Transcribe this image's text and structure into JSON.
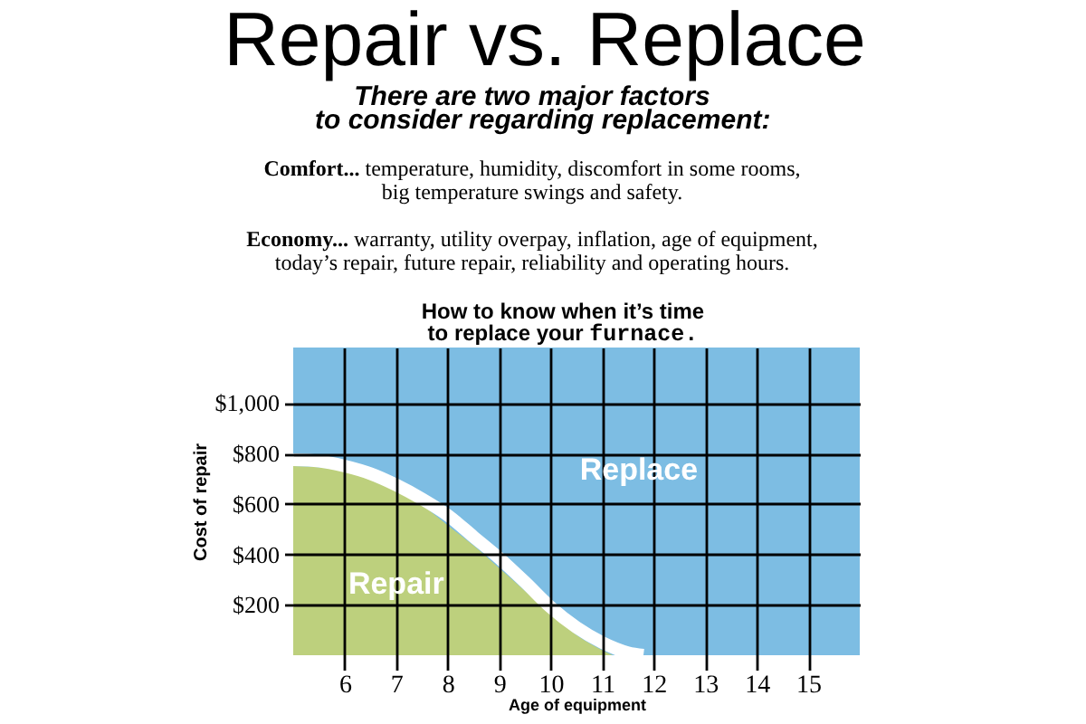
{
  "chart_data": {
    "type": "area",
    "title": "Repair vs. Replace",
    "subtitle": "There are two major factors to consider regarding replacement:",
    "annotations": [
      "Comfort... temperature, humidity, discomfort in some rooms, big temperature swings and safety.",
      "Economy... warranty, utility overpay, inflation, age of equipment, today’s repair, future repair, reliability and operating hours.",
      "How to know when it’s time to replace your furnace."
    ],
    "xlabel": "Age of equipment",
    "ylabel": "Cost of repair",
    "xlim": [
      5,
      16
    ],
    "ylim": [
      0,
      1220
    ],
    "xticks": [
      6,
      7,
      8,
      9,
      10,
      11,
      12,
      13,
      14,
      15
    ],
    "yticks": [
      {
        "value": 200,
        "label": "$200"
      },
      {
        "value": 400,
        "label": "$400"
      },
      {
        "value": 600,
        "label": "$600"
      },
      {
        "value": 800,
        "label": "$800"
      },
      {
        "value": 1000,
        "label": "$1,000"
      }
    ],
    "grid": true,
    "bands": [
      {
        "axis": "y",
        "from": 0,
        "to": 1220,
        "label": "Replace",
        "color": "#7dbde3"
      }
    ],
    "series": [
      {
        "name": "Repair",
        "type": "area",
        "color": "#bdd07d",
        "x": [
          5,
          5.5,
          6,
          6.5,
          7,
          7.5,
          8,
          8.5,
          9,
          9.5,
          10,
          10.5,
          11,
          11.2
        ],
        "values": [
          750,
          745,
          730,
          695,
          650,
          595,
          515,
          435,
          345,
          255,
          165,
          80,
          20,
          0
        ]
      },
      {
        "type": "line",
        "color": "#ffffff",
        "x": [
          5,
          5.5,
          6,
          6.5,
          7,
          7.5,
          8,
          8.5,
          9,
          9.5,
          10,
          10.5,
          11,
          11.5,
          11.8
        ],
        "values": [
          775,
          770,
          750,
          720,
          675,
          620,
          555,
          470,
          385,
          290,
          190,
          110,
          50,
          10,
          0
        ]
      }
    ]
  }
}
